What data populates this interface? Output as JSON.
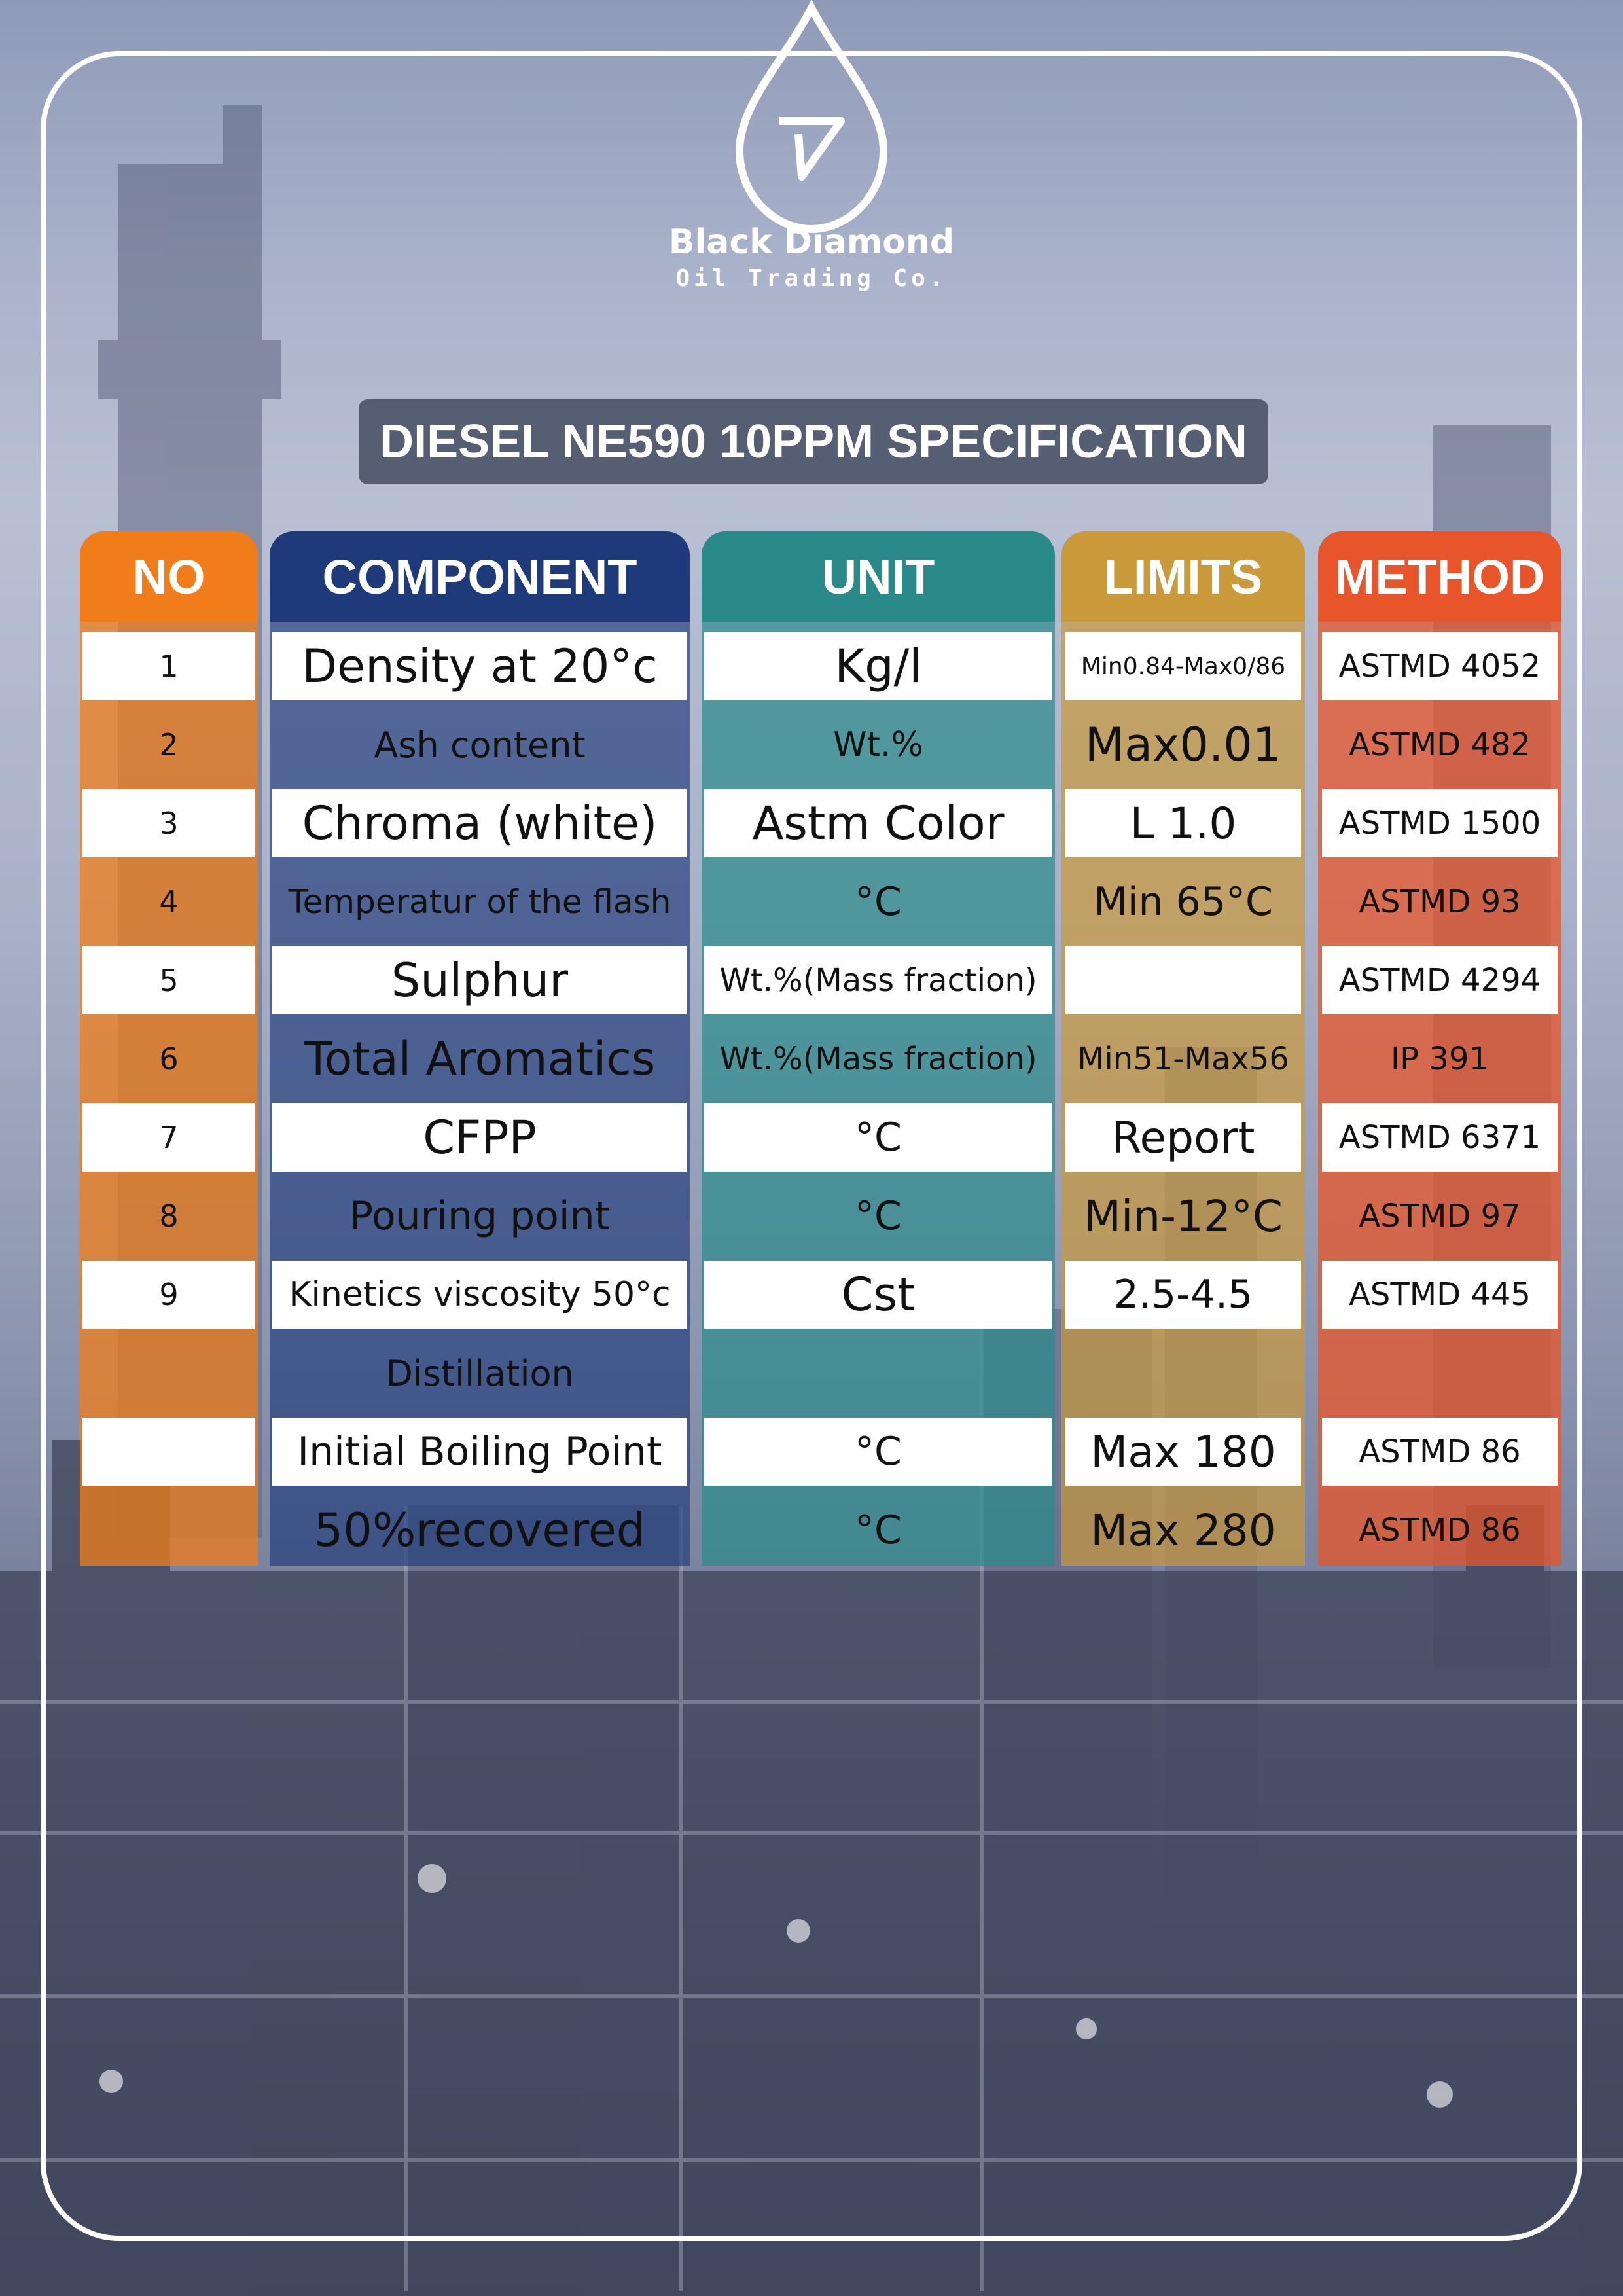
{
  "brand": {
    "name": "Black Diamond",
    "tagline": "Oil Trading Co."
  },
  "title": "DIESEL NE590 10PPM SPECIFICATION",
  "columns": {
    "no": "NO",
    "component": "COMPONENT",
    "unit": "UNIT",
    "limits": "LIMITS",
    "method": "METHOD"
  },
  "colors": {
    "no": "#f07d1a",
    "component": "#1e3a7a",
    "unit": "#2a8a8a",
    "limits": "#c9993a",
    "method": "#e8552a",
    "title_box": "#565e73"
  },
  "rows": [
    {
      "no": "1",
      "component": "Density at 20°c",
      "unit": "Kg/l",
      "limits": "Min0.84-Max0/86",
      "method": "ASTMD 4052"
    },
    {
      "no": "2",
      "component": "Ash content",
      "unit": "Wt.%",
      "limits": "Max0.01",
      "method": "ASTMD 482"
    },
    {
      "no": "3",
      "component": "Chroma (white)",
      "unit": "Astm Color",
      "limits": "L 1.0",
      "method": "ASTMD 1500"
    },
    {
      "no": "4",
      "component": "Temperatur of the flash",
      "unit": "°C",
      "limits": "Min 65°C",
      "method": "ASTMD 93"
    },
    {
      "no": "5",
      "component": "Sulphur",
      "unit": "Wt.%(Mass fraction)",
      "limits": "",
      "method": "ASTMD 4294"
    },
    {
      "no": "6",
      "component": "Total Aromatics",
      "unit": "Wt.%(Mass fraction)",
      "limits": "Min51-Max56",
      "method": "IP 391"
    },
    {
      "no": "7",
      "component": "CFPP",
      "unit": "°C",
      "limits": "Report",
      "method": "ASTMD 6371"
    },
    {
      "no": "8",
      "component": "Pouring point",
      "unit": "°C",
      "limits": "Min-12°C",
      "method": "ASTMD 97"
    },
    {
      "no": "9",
      "component": "Kinetics viscosity 50°c",
      "unit": "Cst",
      "limits": "2.5-4.5",
      "method": "ASTMD 445"
    },
    {
      "no": "",
      "component": "Distillation",
      "unit": "",
      "limits": "",
      "method": ""
    },
    {
      "no": "",
      "component": "Initial Boiling Point",
      "unit": "°C",
      "limits": "Max 180",
      "method": "ASTMD 86"
    },
    {
      "no": "",
      "component": "50%recovered",
      "unit": "°C",
      "limits": "Max 280",
      "method": "ASTMD 86"
    }
  ]
}
